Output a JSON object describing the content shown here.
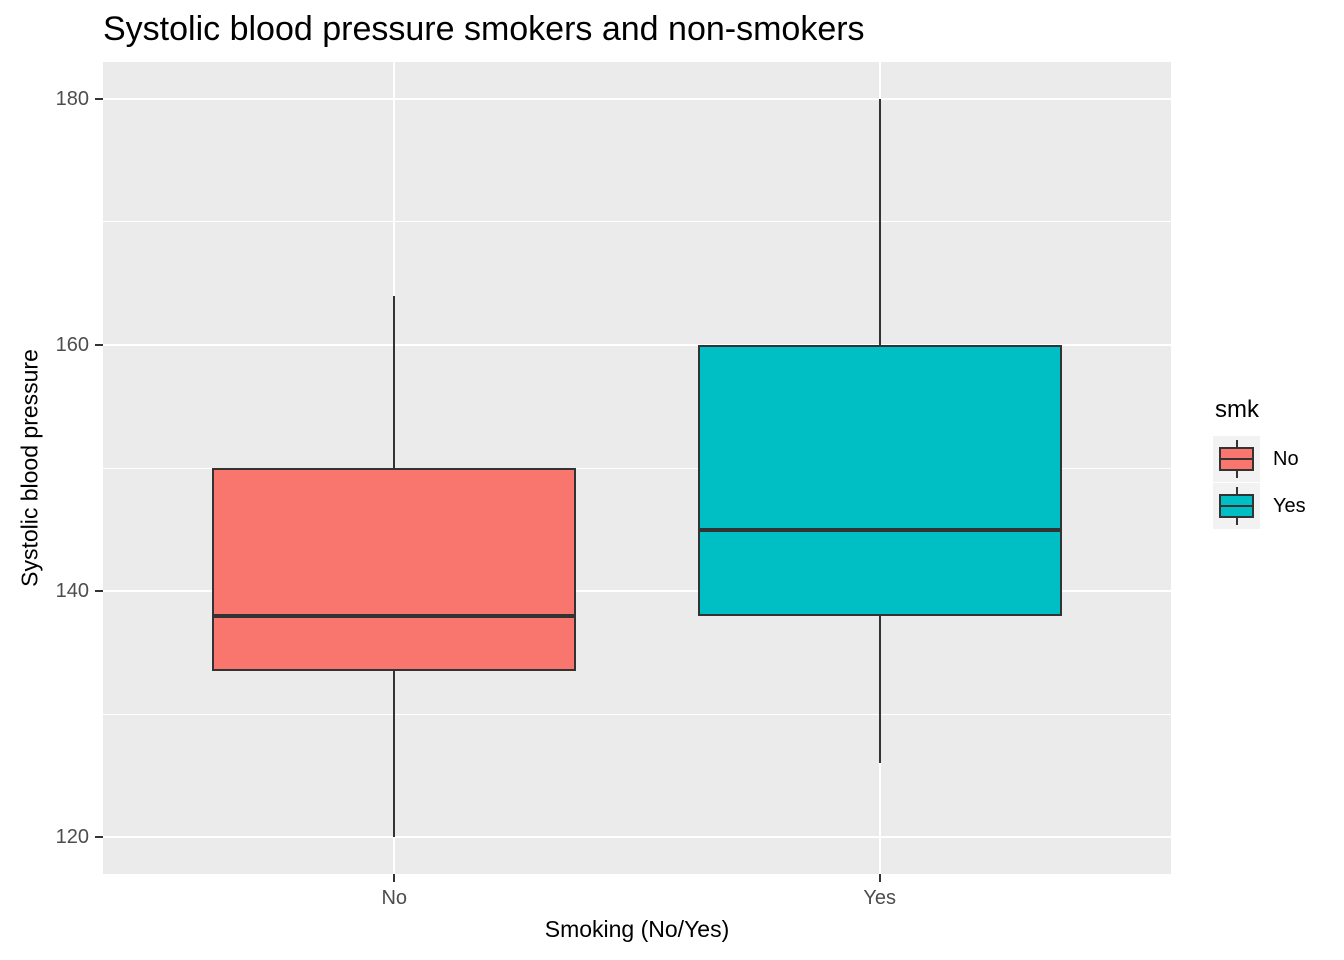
{
  "title": "Systolic blood pressure smokers and non-smokers",
  "chart_data": {
    "type": "boxplot",
    "title": "Systolic blood pressure smokers and non-smokers",
    "xlabel": "Smoking (No/Yes)",
    "ylabel": "Systolic blood pressure",
    "categories": [
      "No",
      "Yes"
    ],
    "y_ticks": [
      120,
      140,
      160,
      180
    ],
    "y_minor_ticks": [
      130,
      150,
      170
    ],
    "ylim": [
      117,
      183
    ],
    "grid": "on",
    "series": [
      {
        "name": "No",
        "color": "#F8766D",
        "min": 120,
        "q1": 133.5,
        "median": 138,
        "q3": 150,
        "max": 164
      },
      {
        "name": "Yes",
        "color": "#00BFC4",
        "min": 126,
        "q1": 138,
        "median": 145,
        "q3": 160,
        "max": 180
      }
    ],
    "legend": {
      "title": "smk",
      "position": "right",
      "entries": [
        {
          "label": "No",
          "color": "#F8766D"
        },
        {
          "label": "Yes",
          "color": "#00BFC4"
        }
      ]
    },
    "colors": {
      "panel_background": "#EBEBEB",
      "gridline": "#FFFFFF",
      "box_stroke": "#333333",
      "tick_label": "#4D4D4D",
      "legend_key_background": "#F2F2F2"
    }
  }
}
